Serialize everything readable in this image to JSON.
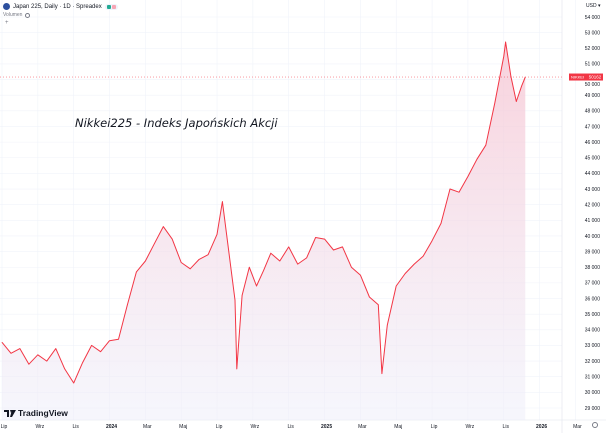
{
  "header": {
    "title": "Japan 225, Daily · 1D · Spreadex",
    "indicator": "Volumen",
    "currency": "USD"
  },
  "annotation": "Nikkei225 - Indeks Japońskich Akcji",
  "brand": "TradingView",
  "price_label": {
    "symbol": "NIKKEI",
    "value": "50162"
  },
  "colors": {
    "line": "#f23645",
    "fill_top": "#f7c6d3",
    "fill_bottom": "#eeeefa",
    "grid": "#f0f3fa"
  },
  "chart_data": {
    "type": "area",
    "title": "Japan 225, Daily · 1D · Spreadex",
    "xlabel": "",
    "ylabel": "USD",
    "x_unit": "months since Jul 2023",
    "ylim": [
      28400,
      55000
    ],
    "xlim": [
      0,
      33.5
    ],
    "y_ticks": [
      "54 000",
      "53 000",
      "52 000",
      "51 000",
      "50 000",
      "49 000",
      "48 000",
      "47 000",
      "46 000",
      "45 000",
      "44 000",
      "43 000",
      "42 000",
      "41 000",
      "40 000",
      "39 000",
      "38 000",
      "37 000",
      "36 000",
      "35 000",
      "34 000",
      "33 000",
      "32 000",
      "31 000",
      "30 000",
      "29 000"
    ],
    "y_tick_values": [
      54000,
      53000,
      52000,
      51000,
      50000,
      49000,
      48000,
      47000,
      46000,
      45000,
      44000,
      43000,
      42000,
      41000,
      40000,
      39000,
      38000,
      37000,
      36000,
      35000,
      34000,
      33000,
      32000,
      31000,
      30000,
      29000
    ],
    "x_ticks": [
      "Lip",
      "Wrz",
      "Lis",
      "2024",
      "Mar",
      "Maj",
      "Lip",
      "Wrz",
      "Lis",
      "2025",
      "Mar",
      "Maj",
      "Lip",
      "Wrz",
      "Lis",
      "2026",
      "Mar"
    ],
    "x_tick_values": [
      0,
      2,
      4,
      6,
      8,
      10,
      12,
      14,
      16,
      18,
      20,
      22,
      24,
      26,
      28,
      30,
      32
    ],
    "x": [
      0,
      0.5,
      1,
      1.5,
      2,
      2.5,
      3,
      3.5,
      4,
      4.5,
      5,
      5.5,
      6,
      6.5,
      7,
      7.5,
      8,
      8.5,
      9,
      9.5,
      10,
      10.5,
      11,
      11.5,
      12,
      12.3,
      12.6,
      13,
      13.1,
      13.4,
      13.8,
      14.2,
      14.6,
      15,
      15.5,
      16,
      16.5,
      17,
      17.5,
      18,
      18.5,
      19,
      19.5,
      20,
      20.5,
      21,
      21.2,
      21.5,
      22,
      22.5,
      23,
      23.5,
      24,
      24.5,
      25,
      25.5,
      26,
      26.5,
      27,
      27.5,
      28,
      28.1,
      28.4,
      28.7,
      29,
      29.2
    ],
    "values": [
      33200,
      32500,
      32800,
      31800,
      32400,
      32000,
      32800,
      31500,
      30600,
      31900,
      33000,
      32600,
      33300,
      33400,
      35600,
      37700,
      38400,
      39500,
      40600,
      39800,
      38300,
      37900,
      38500,
      38800,
      40100,
      42200,
      39500,
      35900,
      31500,
      36200,
      38000,
      36800,
      37800,
      38900,
      38400,
      39300,
      38200,
      38600,
      39900,
      39800,
      39100,
      39300,
      38000,
      37500,
      36100,
      35600,
      31200,
      34300,
      36800,
      37600,
      38200,
      38700,
      39700,
      40800,
      43000,
      42800,
      43800,
      44900,
      45800,
      48500,
      51500,
      52400,
      50200,
      48600,
      49600,
      50162
    ],
    "last_value": 50162
  }
}
